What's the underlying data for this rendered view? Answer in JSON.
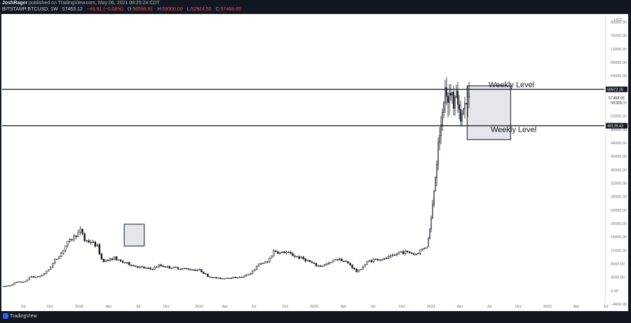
{
  "header": {
    "publisher": "JoshRager",
    "publisher_rest": " published on TradingView.com, May 06, 2021 08:25:24 CDT",
    "symbol": "BITSTAMP:BTCUSD, 1W",
    "last": "57463.12",
    "change": "−46.81 (−0.08%)",
    "open_label": "O:",
    "open": "56599.91",
    "high_label": "H:",
    "high": "59000.00",
    "low_label": "L:",
    "low": "52924.50",
    "close_label": "C:",
    "close": "57468.65"
  },
  "footer": {
    "brand": "TradingView"
  },
  "colors": {
    "background": "#131722",
    "plot": "#ffffff",
    "candle": "#131722",
    "line": "#131722",
    "box_fill": "#cfd2da"
  },
  "chart_data": {
    "type": "candlestick",
    "title": "",
    "xlabel": "",
    "ylabel": "USD",
    "ylim": [
      -4000,
      82000
    ],
    "y_ticks": [
      -4000,
      0,
      4000,
      8000,
      12000,
      16000,
      20000,
      24000,
      28000,
      32000,
      36000,
      40000,
      44000,
      48000,
      52000,
      56000,
      60000,
      64000,
      68000,
      72000,
      76000,
      80000
    ],
    "y_tick_labels": [
      "−4000.00",
      "0.00",
      "4000.00",
      "8000.00",
      "12000.00",
      "16000.00",
      "20000.00",
      "24000.00",
      "28000.00",
      "32000.00",
      "36000.00",
      "40000.00",
      "44000.00",
      "48000.00",
      "52000.00",
      "56000.00",
      "60000.00",
      "64000.00",
      "68000.00",
      "72000.00",
      "76000.00",
      "80000.00"
    ],
    "x_ticks": [
      "Jul",
      "Oct",
      "2018",
      "Apr",
      "Jul",
      "Oct",
      "2019",
      "Apr",
      "Jul",
      "Oct",
      "2020",
      "Apr",
      "Jul",
      "Oct",
      "2021",
      "Apr",
      "Jul",
      "Oct",
      "2022",
      "Apr",
      "Jul"
    ],
    "x_range": [
      "2017-03",
      "2022-07"
    ],
    "horizontal_levels": [
      {
        "price": 59972.26,
        "label": "Weekly Level",
        "tag": "59972.26"
      },
      {
        "price": 49128.43,
        "label": "Weekly Level",
        "tag": "49128.43"
      }
    ],
    "current_price": {
      "value": 57468.65,
      "tag": "57468.65",
      "countdown": "3d 11h"
    },
    "highlight_boxes": [
      {
        "t0": 0.2028,
        "t1": 0.2361,
        "p0": 13300,
        "p1": 19800
      },
      {
        "t0": 0.7722,
        "t1": 0.8444,
        "p0": 45000,
        "p1": 61000
      }
    ],
    "series": [
      {
        "kp": [
          [
            0,
            1200
          ],
          [
            0.021,
            1600
          ],
          [
            0.032,
            2500
          ],
          [
            0.059,
            2700
          ],
          [
            0.062,
            4200
          ],
          [
            0.078,
            4000
          ],
          [
            0.092,
            4400
          ],
          [
            0.107,
            5800
          ],
          [
            0.122,
            8500
          ],
          [
            0.138,
            10800
          ],
          [
            0.152,
            13800
          ],
          [
            0.173,
            16500
          ],
          [
            0.188,
            18000
          ],
          [
            0.195,
            15000
          ],
          [
            0.21,
            14500
          ],
          [
            0.225,
            13200
          ],
          [
            0.23,
            11200
          ],
          [
            0.236,
            9000
          ],
          [
            0.254,
            9000
          ],
          [
            0.263,
            10000
          ],
          [
            0.274,
            8900
          ],
          [
            0.298,
            8000
          ],
          [
            0.311,
            7400
          ],
          [
            0.333,
            6800
          ],
          [
            0.352,
            6400
          ],
          [
            0.37,
            7500
          ],
          [
            0.393,
            7000
          ],
          [
            0.422,
            6600
          ],
          [
            0.441,
            6400
          ],
          [
            0.456,
            6200
          ],
          [
            0.467,
            6100
          ],
          [
            0.487,
            4100
          ],
          [
            0.513,
            3600
          ],
          [
            0.54,
            3900
          ],
          [
            0.565,
            4000
          ],
          [
            0.584,
            5100
          ],
          [
            0.608,
            8100
          ],
          [
            0.625,
            8500
          ],
          [
            0.641,
            12000
          ],
          [
            0.653,
            11200
          ],
          [
            0.668,
            11500
          ],
          [
            0.688,
            10400
          ],
          [
            0.712,
            9400
          ],
          [
            0.724,
            8600
          ],
          [
            0.74,
            7500
          ],
          [
            0.75,
            7300
          ],
          [
            0.773,
            8200
          ],
          [
            0.785,
            9500
          ],
          [
            0.8,
            9200
          ],
          [
            0.819,
            7800
          ],
          [
            0.836,
            5500
          ],
          [
            0.847,
            6800
          ],
          [
            0.863,
            8800
          ],
          [
            0.878,
            9300
          ],
          [
            0.9,
            9400
          ],
          [
            0.925,
            10500
          ],
          [
            0.936,
            11600
          ],
          [
            0.958,
            11400
          ],
          [
            0.974,
            10800
          ],
          [
            0.987,
            12200
          ],
          [
            1.0,
            13300
          ]
        ]
      },
      {
        "kp": [
          [
            0,
            13300
          ],
          [
            0.045,
            16000
          ],
          [
            0.082,
            19000
          ],
          [
            0.12,
            23500
          ],
          [
            0.16,
            29500
          ],
          [
            0.195,
            33500
          ],
          [
            0.235,
            39000
          ],
          [
            0.26,
            46000
          ],
          [
            0.285,
            44000
          ],
          [
            0.31,
            50000
          ],
          [
            0.34,
            48000
          ],
          [
            0.37,
            55500
          ],
          [
            0.4,
            57000
          ],
          [
            0.43,
            59500
          ],
          [
            0.46,
            56000
          ],
          [
            0.49,
            58000
          ],
          [
            0.52,
            59000
          ],
          [
            0.55,
            57000
          ],
          [
            0.58,
            60000
          ],
          [
            0.61,
            58500
          ],
          [
            0.64,
            56000
          ],
          [
            0.67,
            58500
          ],
          [
            0.7,
            61000
          ],
          [
            0.74,
            57000
          ],
          [
            0.78,
            50500
          ],
          [
            0.82,
            48500
          ],
          [
            0.86,
            56000
          ],
          [
            0.9,
            58000
          ],
          [
            0.95,
            56500
          ],
          [
            1.0,
            57463
          ]
        ]
      }
    ]
  }
}
